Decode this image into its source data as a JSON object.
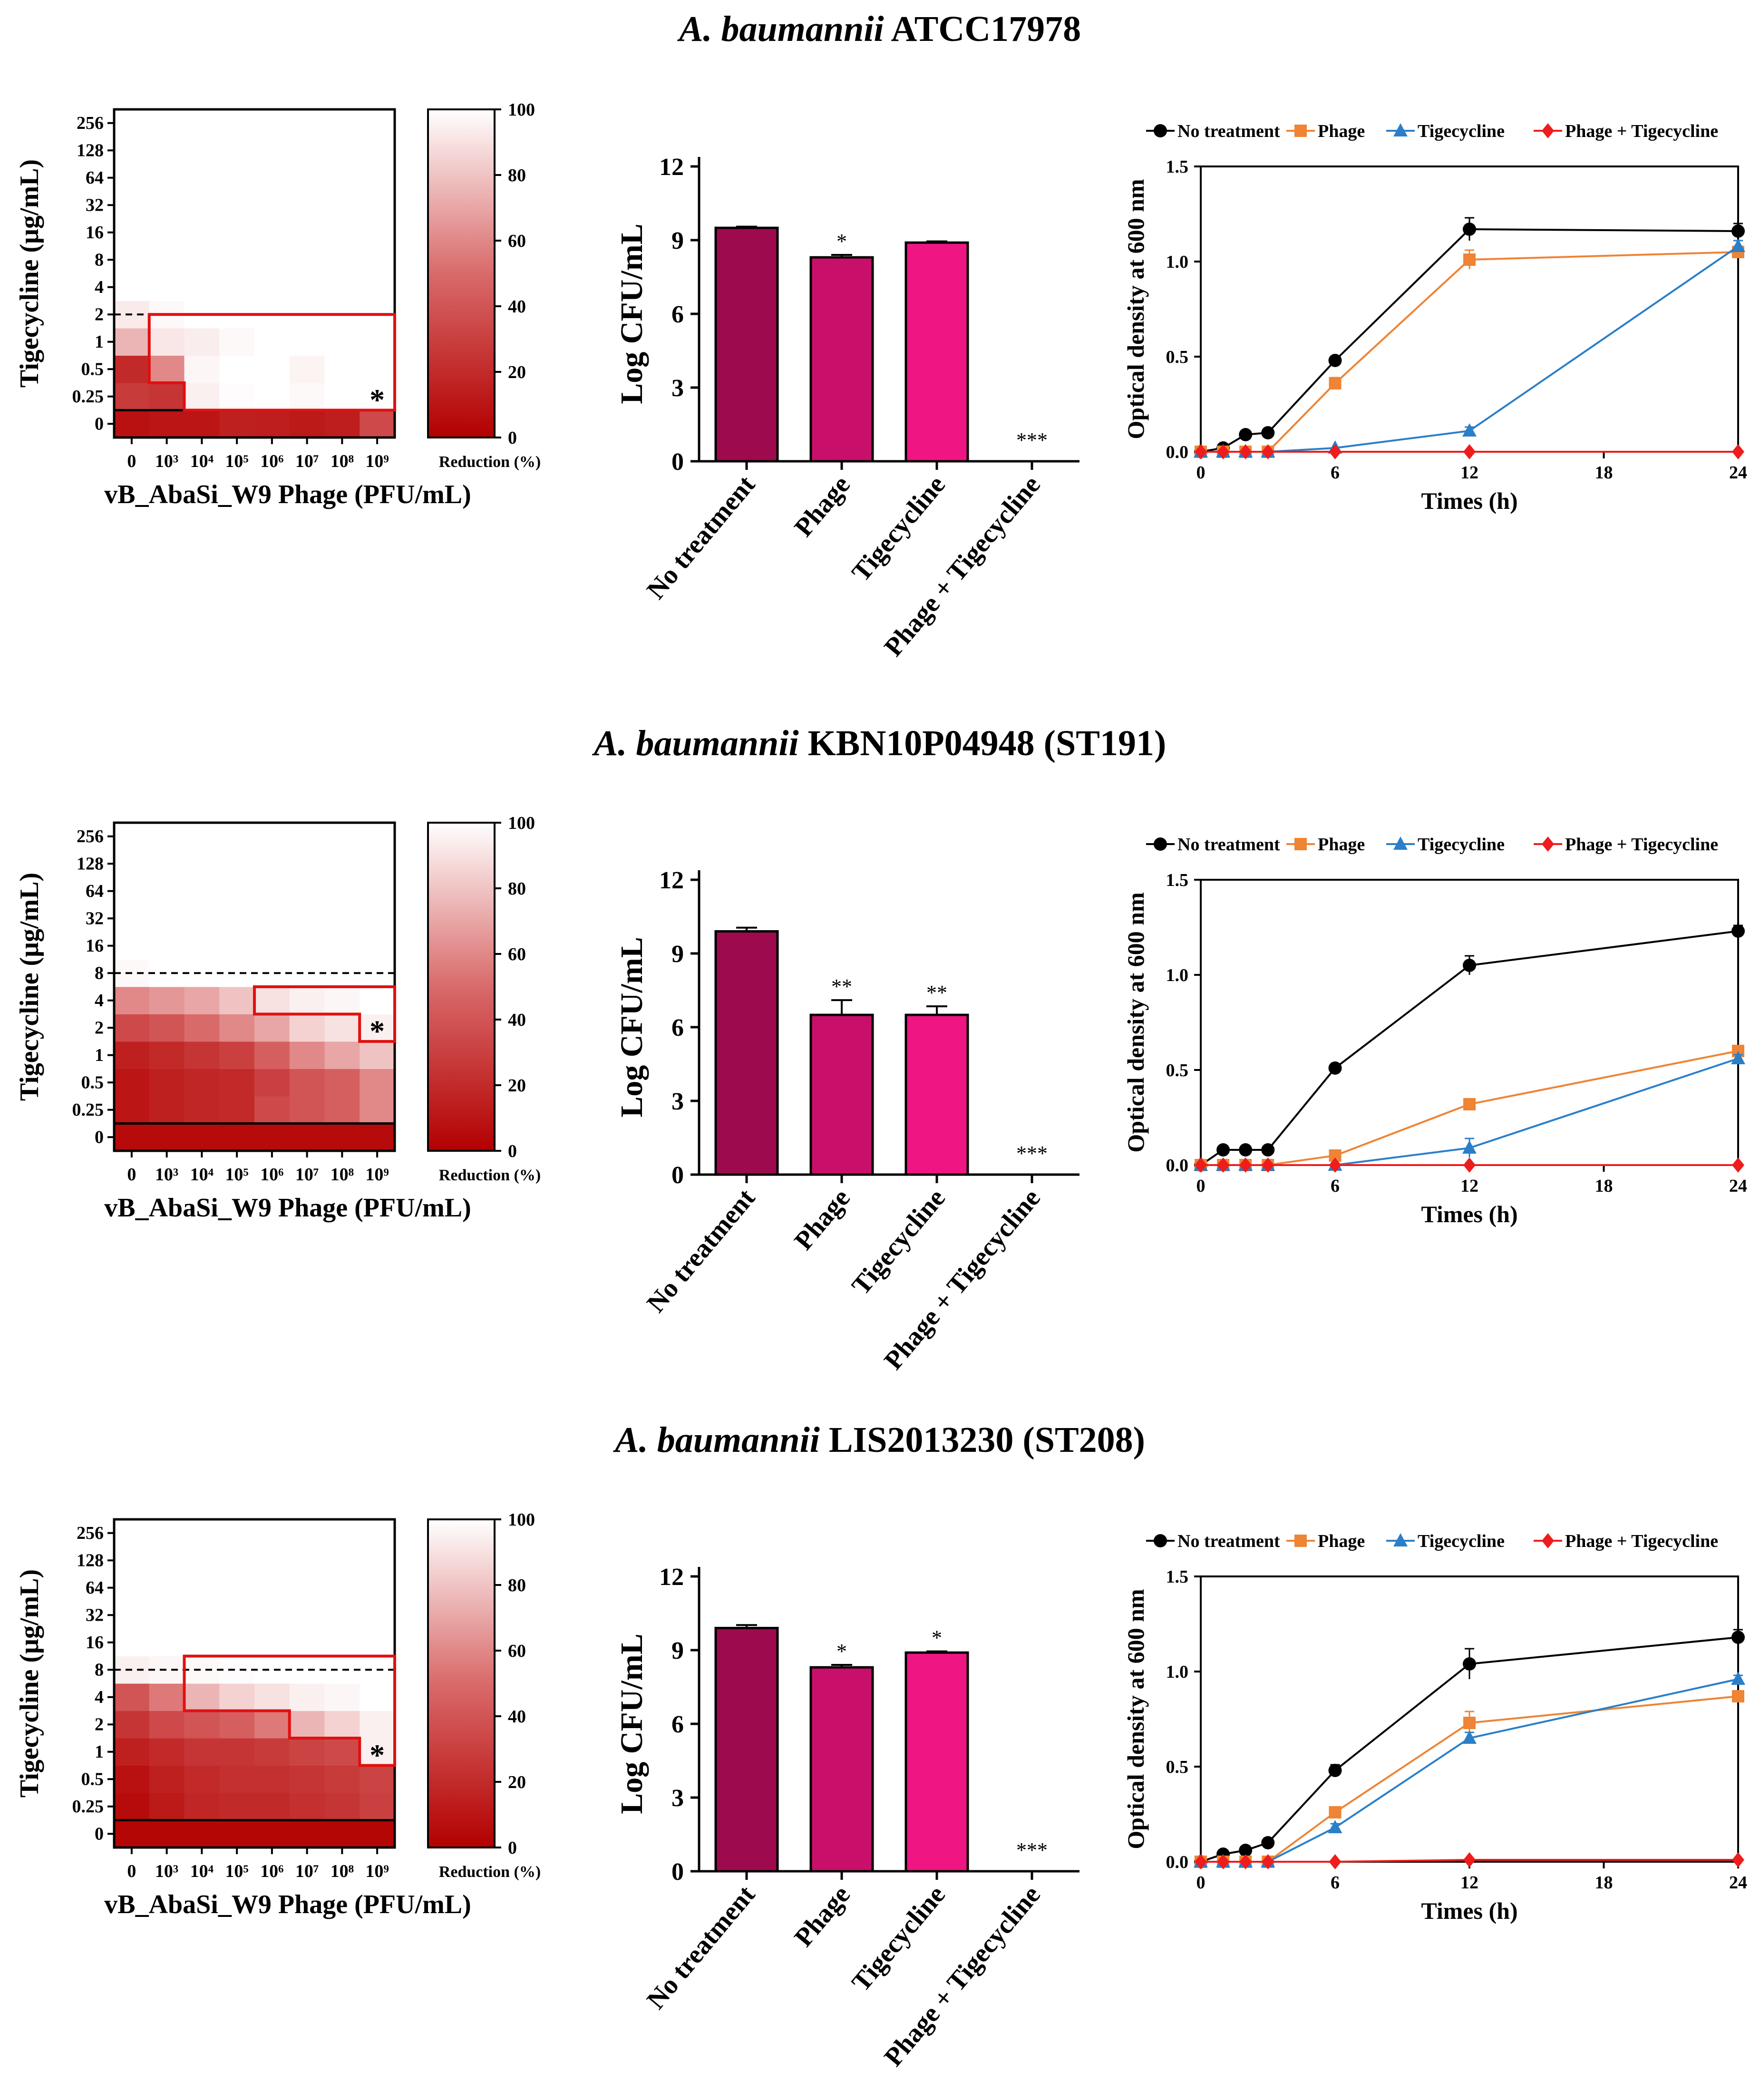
{
  "panels_common": {
    "heatmap": {
      "x_ticks": [
        "0",
        "10³",
        "10⁴",
        "10⁵",
        "10⁶",
        "10⁷",
        "10⁸",
        "10⁹"
      ],
      "y_ticks": [
        "0",
        "0.25",
        "0.5",
        "1",
        "2",
        "4",
        "8",
        "16",
        "32",
        "64",
        "128",
        "256"
      ],
      "xlabel": "vB_AbaSi_W9 Phage (PFU/mL)",
      "ylabel": "Tigecycline (μg/mL)",
      "colorbar_label": "Reduction (%)",
      "colorbar_ticks": [
        "0",
        "20",
        "40",
        "60",
        "80",
        "100"
      ],
      "star": "*"
    },
    "bar": {
      "categories": [
        "No treatment",
        "Phage",
        "Tigecycline",
        "Phage + Tigecycline"
      ],
      "ylabel": "Log CFU/mL",
      "y_ticks": [
        "0",
        "3",
        "6",
        "9",
        "12"
      ],
      "colors": [
        "#9e0a4e",
        "#c8106a",
        "#ef1684",
        "#f01a8a"
      ]
    },
    "line": {
      "xlabel": "Times (h)",
      "ylabel": "Optical density at 600 nm",
      "x_ticks": [
        "0",
        "6",
        "12",
        "18",
        "24"
      ],
      "y_ticks": [
        "0.0",
        "0.5",
        "1.0",
        "1.5"
      ],
      "legend": [
        "No treatment",
        "Phage",
        "Tigecycline",
        "Phage + Tigecycline"
      ],
      "colors": [
        "#000000",
        "#ee8434",
        "#2a7fc8",
        "#ee1c1c"
      ]
    }
  },
  "chart_data": [
    {
      "strain": "A. baumannii",
      "strain_id": "ATCC17978",
      "heatmap": {
        "type": "heatmap",
        "values": [
          [
            8,
            10,
            10,
            15,
            14,
            12,
            14,
            35
          ],
          [
            28,
            25,
            95,
            99,
            100,
            98,
            100,
            100
          ],
          [
            20,
            60,
            97,
            100,
            100,
            96,
            100,
            100
          ],
          [
            75,
            92,
            94,
            98,
            100,
            100,
            100,
            100
          ],
          [
            93,
            98,
            100,
            100,
            100,
            100,
            100,
            100
          ],
          [
            100,
            100,
            100,
            100,
            100,
            100,
            100,
            100
          ],
          [
            100,
            100,
            100,
            100,
            100,
            100,
            100,
            100
          ],
          [
            100,
            100,
            100,
            100,
            100,
            100,
            100,
            100
          ],
          [
            100,
            100,
            100,
            100,
            100,
            100,
            100,
            100
          ],
          [
            100,
            100,
            100,
            100,
            100,
            100,
            100,
            100
          ],
          [
            100,
            100,
            100,
            100,
            100,
            100,
            100,
            100
          ],
          [
            100,
            100,
            100,
            100,
            100,
            100,
            100,
            100
          ]
        ],
        "dashed_level": "2–4 μg/mL",
        "star_cell": [
          1,
          7
        ]
      },
      "bar": {
        "type": "bar",
        "values": [
          9.5,
          8.3,
          8.9,
          0
        ],
        "errors": [
          0.05,
          0.1,
          0.05,
          0
        ],
        "significance": [
          "",
          "*",
          "",
          "***"
        ],
        "ylim": [
          0,
          12
        ]
      },
      "line": {
        "type": "line",
        "x": [
          0,
          1,
          2,
          3,
          6,
          12,
          24
        ],
        "series": [
          {
            "name": "No treatment",
            "values": [
              0.0,
              0.02,
              0.09,
              0.1,
              0.48,
              1.17,
              1.16
            ],
            "errors": [
              0,
              0,
              0,
              0,
              0.02,
              0.06,
              0.04
            ]
          },
          {
            "name": "Phage",
            "values": [
              0.0,
              0.0,
              0.0,
              0.0,
              0.36,
              1.01,
              1.05
            ],
            "errors": [
              0,
              0,
              0,
              0,
              0.03,
              0.05,
              0.03
            ]
          },
          {
            "name": "Tigecycline",
            "values": [
              0.0,
              0.0,
              0.0,
              0.0,
              0.02,
              0.11,
              1.08
            ],
            "errors": [
              0,
              0,
              0,
              0,
              0,
              0.02,
              0.03
            ]
          },
          {
            "name": "Phage + Tigecycline",
            "values": [
              0.0,
              0.0,
              0.0,
              0.0,
              0.0,
              0.0,
              0.0
            ],
            "errors": [
              0,
              0,
              0,
              0,
              0,
              0,
              0
            ]
          }
        ],
        "ylim": [
          0,
          1.5
        ],
        "xlim": [
          0,
          24
        ]
      }
    },
    {
      "strain": "A. baumannii",
      "strain_id": "KBN10P04948 (ST191)",
      "heatmap": {
        "type": "heatmap",
        "values": [
          [
            5,
            5,
            5,
            5,
            5,
            5,
            5,
            5
          ],
          [
            10,
            15,
            18,
            20,
            35,
            40,
            45,
            60
          ],
          [
            10,
            15,
            18,
            20,
            30,
            40,
            45,
            60
          ],
          [
            15,
            20,
            25,
            30,
            45,
            60,
            70,
            80
          ],
          [
            35,
            40,
            50,
            60,
            70,
            85,
            90,
            95
          ],
          [
            60,
            65,
            70,
            80,
            90,
            95,
            97,
            100
          ],
          [
            98,
            100,
            100,
            100,
            100,
            100,
            100,
            100
          ],
          [
            100,
            100,
            100,
            100,
            100,
            100,
            100,
            100
          ],
          [
            100,
            100,
            100,
            100,
            100,
            100,
            100,
            100
          ],
          [
            100,
            100,
            100,
            100,
            100,
            100,
            100,
            100
          ],
          [
            100,
            100,
            100,
            100,
            100,
            100,
            100,
            100
          ],
          [
            100,
            100,
            100,
            100,
            100,
            100,
            100,
            100
          ]
        ],
        "dashed_level": "8–16 μg/mL",
        "star_cell": [
          4,
          7
        ]
      },
      "bar": {
        "type": "bar",
        "values": [
          9.9,
          6.5,
          6.5,
          0
        ],
        "errors": [
          0.15,
          0.6,
          0.35,
          0
        ],
        "significance": [
          "",
          "**",
          "**",
          "***"
        ],
        "ylim": [
          0,
          12
        ]
      },
      "line": {
        "type": "line",
        "x": [
          0,
          1,
          2,
          3,
          6,
          12,
          24
        ],
        "series": [
          {
            "name": "No treatment",
            "values": [
              0.0,
              0.08,
              0.08,
              0.08,
              0.51,
              1.05,
              1.23
            ],
            "errors": [
              0,
              0,
              0,
              0,
              0.02,
              0.05,
              0.03
            ]
          },
          {
            "name": "Phage",
            "values": [
              0.0,
              0.0,
              0.0,
              0.0,
              0.05,
              0.32,
              0.6
            ],
            "errors": [
              0,
              0,
              0,
              0,
              0,
              0.02,
              0.02
            ]
          },
          {
            "name": "Tigecycline",
            "values": [
              0.0,
              0.0,
              0.0,
              0.0,
              0.0,
              0.09,
              0.56
            ],
            "errors": [
              0,
              0,
              0,
              0,
              0,
              0.05,
              0.02
            ]
          },
          {
            "name": "Phage + Tigecycline",
            "values": [
              0.0,
              0.0,
              0.0,
              0.0,
              0.0,
              0.0,
              0.0
            ],
            "errors": [
              0,
              0,
              0,
              0,
              0,
              0,
              0
            ]
          }
        ],
        "ylim": [
          0,
          1.5
        ],
        "xlim": [
          0,
          24
        ]
      }
    },
    {
      "strain": "A. baumannii",
      "strain_id": "LIS2013230 (ST208)",
      "heatmap": {
        "type": "heatmap",
        "values": [
          [
            3,
            3,
            3,
            3,
            3,
            3,
            3,
            3
          ],
          [
            5,
            12,
            18,
            20,
            20,
            22,
            25,
            30
          ],
          [
            8,
            15,
            20,
            22,
            22,
            25,
            28,
            32
          ],
          [
            15,
            20,
            25,
            25,
            28,
            32,
            35,
            95
          ],
          [
            25,
            35,
            40,
            45,
            55,
            75,
            85,
            95
          ],
          [
            40,
            55,
            75,
            85,
            90,
            95,
            97,
            100
          ],
          [
            95,
            97,
            98,
            99,
            100,
            100,
            100,
            100
          ],
          [
            100,
            100,
            100,
            100,
            100,
            100,
            100,
            100
          ],
          [
            100,
            100,
            100,
            100,
            100,
            100,
            100,
            100
          ],
          [
            100,
            100,
            100,
            100,
            100,
            100,
            100,
            100
          ],
          [
            100,
            100,
            100,
            100,
            100,
            100,
            100,
            100
          ],
          [
            100,
            100,
            100,
            100,
            100,
            100,
            100,
            100
          ]
        ],
        "dashed_level": "8–16 μg/mL",
        "star_cell": [
          3,
          7
        ]
      },
      "bar": {
        "type": "bar",
        "values": [
          9.9,
          8.3,
          8.9,
          0
        ],
        "errors": [
          0.12,
          0.1,
          0.05,
          0
        ],
        "significance": [
          "",
          "*",
          "*",
          "***"
        ],
        "ylim": [
          0,
          12
        ]
      },
      "line": {
        "type": "line",
        "x": [
          0,
          1,
          2,
          3,
          6,
          12,
          24
        ],
        "series": [
          {
            "name": "No treatment",
            "values": [
              0.0,
              0.04,
              0.06,
              0.1,
              0.48,
              1.04,
              1.18
            ],
            "errors": [
              0,
              0,
              0,
              0,
              0.03,
              0.08,
              0.04
            ]
          },
          {
            "name": "Phage",
            "values": [
              0.0,
              0.0,
              0.0,
              0.0,
              0.26,
              0.73,
              0.87
            ],
            "errors": [
              0,
              0,
              0,
              0,
              0.02,
              0.06,
              0.02
            ]
          },
          {
            "name": "Tigecycline",
            "values": [
              0.0,
              0.0,
              0.0,
              0.0,
              0.18,
              0.65,
              0.96
            ],
            "errors": [
              0,
              0,
              0,
              0,
              0.02,
              0.03,
              0.02
            ]
          },
          {
            "name": "Phage + Tigecycline",
            "values": [
              0.0,
              0.0,
              0.0,
              0.0,
              0.0,
              0.01,
              0.01
            ],
            "errors": [
              0,
              0,
              0,
              0,
              0,
              0,
              0
            ]
          }
        ],
        "ylim": [
          0,
          1.5
        ],
        "xlim": [
          0,
          24
        ]
      }
    }
  ]
}
